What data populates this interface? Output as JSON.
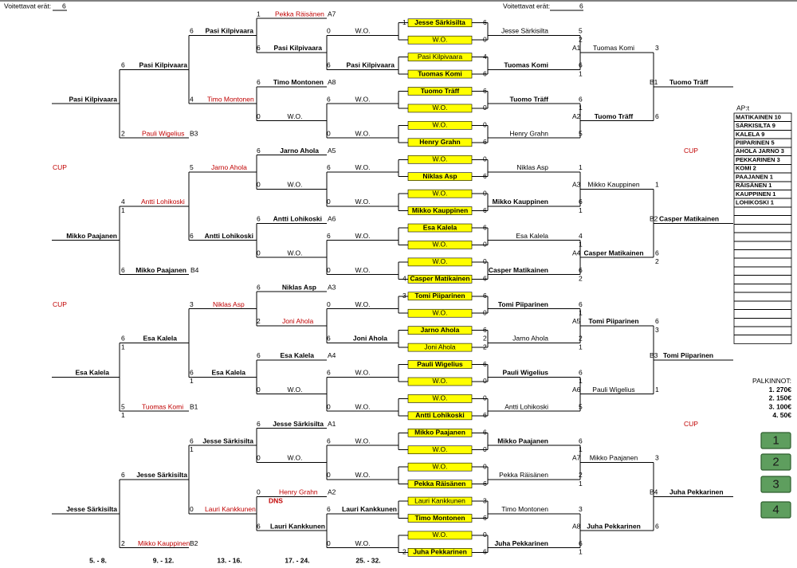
{
  "header": {
    "left_label": "Voitettavat erät:",
    "left_value": 6,
    "right_label": "Voitettavat erät:",
    "right_value": 6
  },
  "rows": [
    [
      1,
      "Pekka Räisänen",
      "A7"
    ],
    [
      1,
      "Jesse Särkisilta",
      6
    ],
    [
      6,
      "Pasi Kilpivaara",
      0,
      "W.O.",
      "Jesse Särkisilta",
      5
    ],
    [
      "W.O.",
      0,
      2
    ],
    [
      6,
      "Pasi Kilpivaara",
      "A1",
      "Tuomas Komi",
      3
    ],
    [
      "Pasi Kilpivaara",
      4
    ],
    [
      6,
      "Pasi Kilpivaara",
      6,
      "Pasi Kilpivaara",
      "Tuomas Komi",
      6
    ],
    [
      "Tuomas Komi",
      6,
      1
    ],
    [
      6,
      "Timo Montonen",
      "A8",
      "B1",
      "Tuomo Träff"
    ],
    [
      "Tuomo Träff",
      6
    ],
    [
      "Pasi Kilpivaara",
      4,
      "Timo Montonen",
      6,
      "W.O.",
      "Tuomo Träff",
      6
    ],
    [
      "W.O.",
      0,
      1
    ],
    [
      0,
      "W.O.",
      "A2",
      "Tuomo Träff",
      6
    ],
    [
      "W.O.",
      0
    ],
    [
      2,
      "Pauli Wigelius",
      "B3",
      0,
      "W.O.",
      "Henry Grahn",
      5
    ],
    [
      "Henry Grahn",
      6
    ],
    [
      6,
      "Jarno Ahola",
      "A5",
      "CUP"
    ],
    [
      "W.O.",
      0
    ],
    [
      "CUP",
      5,
      "Jarno Ahola",
      6,
      "W.O.",
      "Niklas Asp",
      1
    ],
    [
      "Niklas Asp",
      6
    ],
    [
      0,
      "W.O.",
      "A3",
      "Mikko Kauppinen",
      1
    ],
    [
      "W.O.",
      0
    ],
    [
      4,
      "Antti Lohikoski",
      0,
      "W.O.",
      "Mikko Kauppinen",
      6
    ],
    [
      1,
      "Mikko Kauppinen",
      6,
      1
    ],
    [
      6,
      "Antti Lohikoski",
      "A6",
      "B2",
      "Casper Matikainen"
    ],
    [
      "Esa Kalela",
      6
    ],
    [
      "Mikko Paajanen",
      6,
      "Antti Lohikoski",
      6,
      "W.O.",
      "Esa Kalela",
      4
    ],
    [
      "W.O.",
      0,
      1
    ],
    [
      0,
      "W.O.",
      "A4",
      "Casper Matikainen",
      6
    ],
    [
      "W.O.",
      0,
      2
    ],
    [
      6,
      "Mikko Paajanen",
      "B4",
      0,
      "W.O.",
      "Casper Matikainen",
      6
    ],
    [
      4,
      "Casper Matikainen",
      6,
      2
    ],
    [
      6,
      "Niklas Asp",
      "A3"
    ],
    [
      3,
      "Tomi Piiparinen",
      6
    ],
    [
      "CUP",
      3,
      "Niklas Asp",
      0,
      "W.O.",
      "Tomi Piiparinen",
      6
    ],
    [
      "W.O.",
      0,
      1
    ],
    [
      2,
      "Joni Ahola",
      "A5",
      "Tomi Piiparinen",
      6
    ],
    [
      "Jarno Ahola",
      6,
      3
    ],
    [
      6,
      "Esa Kalela",
      6,
      "Joni Ahola",
      2,
      "Jarno Ahola",
      2
    ],
    [
      1,
      "Joni Ahola",
      2,
      1
    ],
    [
      6,
      "Esa Kalela",
      "A4",
      "B3",
      "Tomi Piiparinen"
    ],
    [
      "Pauli Wigelius",
      6
    ],
    [
      "Esa Kalela",
      6,
      "Esa Kalela",
      6,
      "W.O.",
      "Pauli Wigelius",
      6
    ],
    [
      1,
      "W.O.",
      0,
      1,
      "PALKINNOT:"
    ],
    [
      0,
      "W.O.",
      "A6",
      "Pauli Wigelius",
      1,
      "1. 270€"
    ],
    [
      "W.O.",
      0,
      "2. 150€"
    ],
    [
      5,
      "Tuomas Komi",
      "B1",
      0,
      "W.O.",
      "Antti Lohikoski",
      5,
      "3. 100€"
    ],
    [
      1,
      "Antti Lohikoski",
      6,
      "4. 50€"
    ],
    [
      6,
      "Jesse Särkisilta",
      "A1",
      "CUP"
    ],
    [
      "Mikko Paajanen",
      6
    ],
    [
      6,
      "Jesse Särkisilta",
      6,
      "W.O.",
      "Mikko Paajanen",
      6
    ],
    [
      1,
      "W.O.",
      0,
      1
    ],
    [
      0,
      "W.O.",
      "A7",
      "Mikko Paajanen",
      3
    ],
    [
      "W.O.",
      0
    ],
    [
      6,
      "Jesse Särkisilta",
      0,
      "W.O.",
      "Pekka Räisänen",
      2
    ],
    [
      "Pekka Räisänen",
      6,
      1
    ],
    [
      0,
      "Henry Grahn",
      "A2",
      "B4",
      "Juha Pekkarinen"
    ],
    [
      "DNS",
      "Lauri Kankkunen",
      3
    ],
    [
      "Jesse Särkisilta",
      0,
      "Lauri Kankkunen",
      6,
      "Lauri Kankkunen",
      "Timo Montonen",
      3
    ],
    [
      "Timo Montonen",
      6
    ],
    [
      6,
      "Lauri Kankkunen",
      "A8",
      "Juha Pekkarinen",
      6
    ],
    [
      "W.O.",
      0
    ],
    [
      2,
      "Mikko Kauppinen",
      "B2",
      0,
      "W.O.",
      "Juha Pekkarinen",
      6
    ],
    [
      2,
      "Juha Pekkarinen",
      6,
      1
    ]
  ],
  "round_labels": [
    "5. - 8.",
    "9. - 12.",
    "13. - 16.",
    "17. - 24.",
    "25. - 32."
  ],
  "ap_table": {
    "title": "AP:t",
    "rows": [
      "MATIKAINEN 10",
      "SÄRKISILTA 9",
      "KALELA 9",
      "PIIPARINEN 5",
      "AHOLA JARNO 3",
      "PEKKARINEN 3",
      "KOMI 2",
      "PAAJANEN 1",
      "RÄISÄNEN 1",
      "KAUPPINEN 1",
      "LOHIKOSKI 1"
    ]
  },
  "buttons": [
    1,
    2,
    3,
    4
  ]
}
